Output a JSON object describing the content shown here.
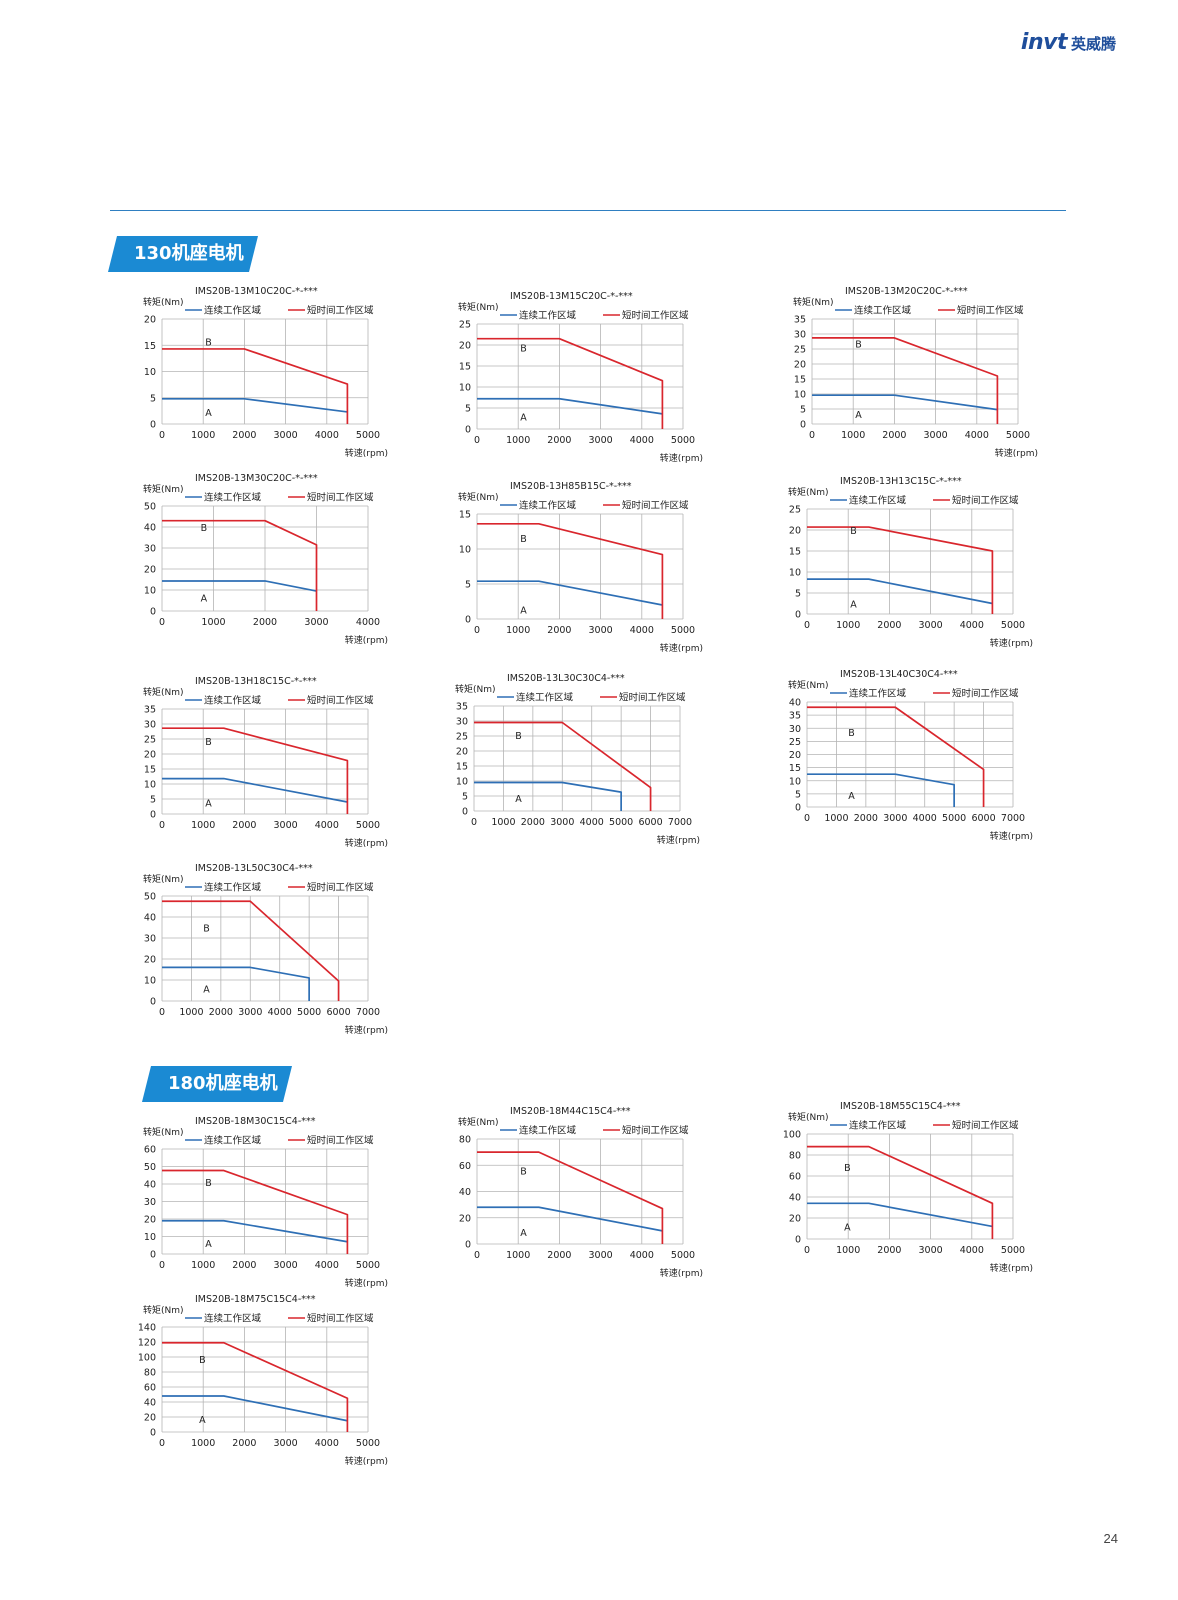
{
  "header": {
    "logo_mark": "invt",
    "logo_text": "英威腾"
  },
  "sections": [
    {
      "title": "130机座电机"
    },
    {
      "title": "180机座电机"
    }
  ],
  "page_number": "24",
  "legend": {
    "continuous": "连续工作区域",
    "short": "短时间工作区域"
  },
  "axis": {
    "ylabel": "转矩(Nm)",
    "xlabel": "转速(rpm)"
  },
  "colors": {
    "continuous": "#2e6fb5",
    "short": "#d9262d",
    "grid": "#b4b4b4",
    "accent": "#1b8ad3"
  },
  "chart_data": [
    {
      "type": "line",
      "title": "IMS20B-13M10C20C-*-***",
      "xlim": [
        0,
        5000
      ],
      "xticks": [
        0,
        1000,
        2000,
        3000,
        4000,
        5000
      ],
      "ylim": [
        0,
        20
      ],
      "yticks": [
        0,
        5,
        10,
        15,
        20
      ],
      "series": [
        {
          "name": "连续工作区域",
          "x": [
            0,
            2000,
            4500
          ],
          "y": [
            4.8,
            4.8,
            2.3
          ]
        },
        {
          "name": "短时间工作区域",
          "x": [
            0,
            2000,
            4500,
            4500
          ],
          "y": [
            14.3,
            14.3,
            7.6,
            0
          ]
        }
      ],
      "region_labels": [
        {
          "text": "B",
          "x": 1050,
          "y": 15
        },
        {
          "text": "A",
          "x": 1050,
          "y": 1.5
        }
      ]
    },
    {
      "type": "line",
      "title": "IMS20B-13M15C20C-*-***",
      "xlim": [
        0,
        5000
      ],
      "xticks": [
        0,
        1000,
        2000,
        3000,
        4000,
        5000
      ],
      "ylim": [
        0,
        25
      ],
      "yticks": [
        0,
        5,
        10,
        15,
        20,
        25
      ],
      "series": [
        {
          "name": "连续工作区域",
          "x": [
            0,
            2000,
            4500
          ],
          "y": [
            7.2,
            7.2,
            3.6
          ]
        },
        {
          "name": "短时间工作区域",
          "x": [
            0,
            2000,
            4500,
            4500
          ],
          "y": [
            21.5,
            21.5,
            11.5,
            0
          ]
        }
      ],
      "region_labels": [
        {
          "text": "B",
          "x": 1050,
          "y": 18.5
        },
        {
          "text": "A",
          "x": 1050,
          "y": 2
        }
      ]
    },
    {
      "type": "line",
      "title": "IMS20B-13M20C20C-*-***",
      "xlim": [
        0,
        5000
      ],
      "xticks": [
        0,
        1000,
        2000,
        3000,
        4000,
        5000
      ],
      "ylim": [
        0,
        35
      ],
      "yticks": [
        0,
        5,
        10,
        15,
        20,
        25,
        30,
        35
      ],
      "series": [
        {
          "name": "连续工作区域",
          "x": [
            0,
            2000,
            4500
          ],
          "y": [
            9.6,
            9.6,
            4.8
          ]
        },
        {
          "name": "短时间工作区域",
          "x": [
            0,
            2000,
            4500,
            4500
          ],
          "y": [
            28.7,
            28.7,
            16,
            0
          ]
        }
      ],
      "region_labels": [
        {
          "text": "B",
          "x": 1050,
          "y": 25.5
        },
        {
          "text": "A",
          "x": 1050,
          "y": 2
        }
      ]
    },
    {
      "type": "line",
      "title": "IMS20B-13M30C20C-*-***",
      "xlim": [
        0,
        4000
      ],
      "xticks": [
        0,
        1000,
        2000,
        3000,
        4000
      ],
      "ylim": [
        0,
        50
      ],
      "yticks": [
        0,
        10,
        20,
        30,
        40,
        50
      ],
      "series": [
        {
          "name": "连续工作区域",
          "x": [
            0,
            2000,
            3000
          ],
          "y": [
            14.3,
            14.3,
            9.5
          ]
        },
        {
          "name": "短时间工作区域",
          "x": [
            0,
            2000,
            3000,
            3000
          ],
          "y": [
            43,
            43,
            31.5,
            0
          ]
        }
      ],
      "region_labels": [
        {
          "text": "B",
          "x": 750,
          "y": 38
        },
        {
          "text": "A",
          "x": 750,
          "y": 4.5
        }
      ]
    },
    {
      "type": "line",
      "title": "IMS20B-13H85B15C-*-***",
      "xlim": [
        0,
        5000
      ],
      "xticks": [
        0,
        1000,
        2000,
        3000,
        4000,
        5000
      ],
      "ylim": [
        0,
        15
      ],
      "yticks": [
        0,
        5,
        10,
        15
      ],
      "series": [
        {
          "name": "连续工作区域",
          "x": [
            0,
            1500,
            4500
          ],
          "y": [
            5.4,
            5.4,
            2.0
          ]
        },
        {
          "name": "短时间工作区域",
          "x": [
            0,
            1500,
            4500,
            4500
          ],
          "y": [
            13.6,
            13.6,
            9.2,
            0
          ]
        }
      ],
      "region_labels": [
        {
          "text": "B",
          "x": 1050,
          "y": 11
        },
        {
          "text": "A",
          "x": 1050,
          "y": 0.8
        }
      ]
    },
    {
      "type": "line",
      "title": "IMS20B-13H13C15C-*-***",
      "xlim": [
        0,
        5000
      ],
      "xticks": [
        0,
        1000,
        2000,
        3000,
        4000,
        5000
      ],
      "ylim": [
        0,
        25
      ],
      "yticks": [
        0,
        5,
        10,
        15,
        20,
        25
      ],
      "series": [
        {
          "name": "连续工作区域",
          "x": [
            0,
            1500,
            4500
          ],
          "y": [
            8.3,
            8.3,
            2.5
          ]
        },
        {
          "name": "短时间工作区域",
          "x": [
            0,
            1500,
            4500,
            4500
          ],
          "y": [
            20.7,
            20.7,
            15,
            0
          ]
        }
      ],
      "region_labels": [
        {
          "text": "B",
          "x": 1050,
          "y": 19
        },
        {
          "text": "A",
          "x": 1050,
          "y": 1.5
        }
      ]
    },
    {
      "type": "line",
      "title": "IMS20B-13H18C15C-*-***",
      "xlim": [
        0,
        5000
      ],
      "xticks": [
        0,
        1000,
        2000,
        3000,
        4000,
        5000
      ],
      "ylim": [
        0,
        35
      ],
      "yticks": [
        0,
        5,
        10,
        15,
        20,
        25,
        30,
        35
      ],
      "series": [
        {
          "name": "连续工作区域",
          "x": [
            0,
            1500,
            4500
          ],
          "y": [
            11.8,
            11.8,
            4.0
          ]
        },
        {
          "name": "短时间工作区域",
          "x": [
            0,
            1500,
            4500,
            4500
          ],
          "y": [
            28.6,
            28.6,
            17.8,
            0
          ]
        }
      ],
      "region_labels": [
        {
          "text": "B",
          "x": 1050,
          "y": 23
        },
        {
          "text": "A",
          "x": 1050,
          "y": 2.5
        }
      ]
    },
    {
      "type": "line",
      "title": "IMS20B-13L30C30C4-***",
      "xlim": [
        0,
        7000
      ],
      "xticks": [
        0,
        1000,
        2000,
        3000,
        4000,
        5000,
        6000,
        7000
      ],
      "ylim": [
        0,
        35
      ],
      "yticks": [
        0,
        5,
        10,
        15,
        20,
        25,
        30,
        35
      ],
      "series": [
        {
          "name": "连续工作区域",
          "x": [
            0,
            3000,
            5000,
            5000
          ],
          "y": [
            9.5,
            9.5,
            6.3,
            0
          ]
        },
        {
          "name": "短时间工作区域",
          "x": [
            0,
            3000,
            6000,
            6000
          ],
          "y": [
            29.5,
            29.5,
            7.8,
            0
          ]
        }
      ],
      "region_labels": [
        {
          "text": "B",
          "x": 1400,
          "y": 24
        },
        {
          "text": "A",
          "x": 1400,
          "y": 3
        }
      ]
    },
    {
      "type": "line",
      "title": "IMS20B-13L40C30C4-***",
      "xlim": [
        0,
        7000
      ],
      "xticks": [
        0,
        1000,
        2000,
        3000,
        4000,
        5000,
        6000,
        7000
      ],
      "ylim": [
        0,
        40
      ],
      "yticks": [
        0,
        5,
        10,
        15,
        20,
        25,
        30,
        35,
        40
      ],
      "series": [
        {
          "name": "连续工作区域",
          "x": [
            0,
            3000,
            5000,
            5000
          ],
          "y": [
            12.5,
            12.5,
            8.5,
            0
          ]
        },
        {
          "name": "短时间工作区域",
          "x": [
            0,
            3000,
            6000,
            6000
          ],
          "y": [
            38,
            38,
            14.3,
            0
          ]
        }
      ],
      "region_labels": [
        {
          "text": "B",
          "x": 1400,
          "y": 27
        },
        {
          "text": "A",
          "x": 1400,
          "y": 3
        }
      ]
    },
    {
      "type": "line",
      "title": "IMS20B-13L50C30C4-***",
      "xlim": [
        0,
        7000
      ],
      "xticks": [
        0,
        1000,
        2000,
        3000,
        4000,
        5000,
        6000,
        7000
      ],
      "ylim": [
        0,
        50
      ],
      "yticks": [
        0,
        10,
        20,
        30,
        40,
        50
      ],
      "series": [
        {
          "name": "连续工作区域",
          "x": [
            0,
            3000,
            5000,
            5000
          ],
          "y": [
            16,
            16,
            11,
            0
          ]
        },
        {
          "name": "短时间工作区域",
          "x": [
            0,
            3000,
            6000,
            6000
          ],
          "y": [
            47.5,
            47.5,
            9.5,
            0
          ]
        }
      ],
      "region_labels": [
        {
          "text": "B",
          "x": 1400,
          "y": 33
        },
        {
          "text": "A",
          "x": 1400,
          "y": 4
        }
      ]
    },
    {
      "type": "line",
      "title": "IMS20B-18M30C15C4-***",
      "xlim": [
        0,
        5000
      ],
      "xticks": [
        0,
        1000,
        2000,
        3000,
        4000,
        5000
      ],
      "ylim": [
        0,
        60
      ],
      "yticks": [
        0,
        10,
        20,
        30,
        40,
        50,
        60
      ],
      "series": [
        {
          "name": "连续工作区域",
          "x": [
            0,
            1500,
            4500
          ],
          "y": [
            19,
            19,
            7
          ]
        },
        {
          "name": "短时间工作区域",
          "x": [
            0,
            1500,
            4500,
            4500
          ],
          "y": [
            47.7,
            47.7,
            22.5,
            0
          ]
        }
      ],
      "region_labels": [
        {
          "text": "B",
          "x": 1050,
          "y": 39
        },
        {
          "text": "A",
          "x": 1050,
          "y": 4
        }
      ]
    },
    {
      "type": "line",
      "title": "IMS20B-18M44C15C4-***",
      "xlim": [
        0,
        5000
      ],
      "xticks": [
        0,
        1000,
        2000,
        3000,
        4000,
        5000
      ],
      "ylim": [
        0,
        80
      ],
      "yticks": [
        0,
        20,
        40,
        60,
        80
      ],
      "series": [
        {
          "name": "连续工作区域",
          "x": [
            0,
            1500,
            4500
          ],
          "y": [
            28,
            28,
            10
          ]
        },
        {
          "name": "短时间工作区域",
          "x": [
            0,
            1500,
            4500,
            4500
          ],
          "y": [
            70,
            70,
            27,
            0
          ]
        }
      ],
      "region_labels": [
        {
          "text": "B",
          "x": 1050,
          "y": 53
        },
        {
          "text": "A",
          "x": 1050,
          "y": 6
        }
      ]
    },
    {
      "type": "line",
      "title": "IMS20B-18M55C15C4-***",
      "xlim": [
        0,
        5000
      ],
      "xticks": [
        0,
        1000,
        2000,
        3000,
        4000,
        5000
      ],
      "ylim": [
        0,
        100
      ],
      "yticks": [
        0,
        20,
        40,
        60,
        80,
        100
      ],
      "series": [
        {
          "name": "连续工作区域",
          "x": [
            0,
            1500,
            4500
          ],
          "y": [
            34,
            34,
            12
          ]
        },
        {
          "name": "短时间工作区域",
          "x": [
            0,
            1500,
            4500,
            4500
          ],
          "y": [
            88,
            88,
            34,
            0
          ]
        }
      ],
      "region_labels": [
        {
          "text": "B",
          "x": 900,
          "y": 65
        },
        {
          "text": "A",
          "x": 900,
          "y": 8
        }
      ]
    },
    {
      "type": "line",
      "title": "IMS20B-18M75C15C4-***",
      "xlim": [
        0,
        5000
      ],
      "xticks": [
        0,
        1000,
        2000,
        3000,
        4000,
        5000
      ],
      "ylim": [
        0,
        140
      ],
      "yticks": [
        0,
        20,
        40,
        60,
        80,
        100,
        120,
        140
      ],
      "series": [
        {
          "name": "连续工作区域",
          "x": [
            0,
            1500,
            4500
          ],
          "y": [
            48,
            48,
            15
          ]
        },
        {
          "name": "短时间工作区域",
          "x": [
            0,
            1500,
            4500,
            4500
          ],
          "y": [
            119,
            119,
            45,
            0
          ]
        }
      ],
      "region_labels": [
        {
          "text": "B",
          "x": 900,
          "y": 92
        },
        {
          "text": "A",
          "x": 900,
          "y": 12
        }
      ]
    }
  ]
}
